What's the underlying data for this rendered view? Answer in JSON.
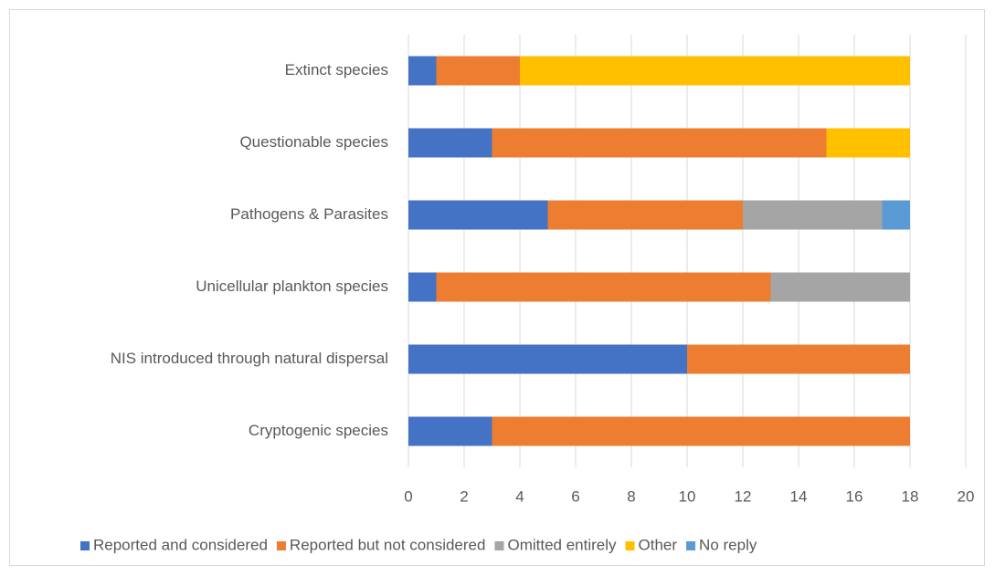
{
  "chart_data": {
    "type": "stacked-bar-horizontal",
    "categories": [
      "Extinct species",
      "Questionable species",
      "Pathogens & Parasites",
      "Unicellular plankton species",
      "NIS introduced through natural dispersal",
      "Cryptogenic species"
    ],
    "series": [
      {
        "name": "Reported and considered",
        "color": "#4472c4",
        "values": [
          1,
          3,
          5,
          1,
          10,
          3
        ]
      },
      {
        "name": "Reported but not considered",
        "color": "#ed7d31",
        "values": [
          3,
          12,
          7,
          12,
          8,
          15
        ]
      },
      {
        "name": "Omitted entirely",
        "color": "#a5a5a5",
        "values": [
          0,
          0,
          5,
          5,
          0,
          0
        ]
      },
      {
        "name": "Other",
        "color": "#ffc000",
        "values": [
          14,
          3,
          0,
          0,
          0,
          0
        ]
      },
      {
        "name": "No reply",
        "color": "#5b9bd5",
        "values": [
          0,
          0,
          1,
          0,
          0,
          0
        ]
      }
    ],
    "xlim": [
      0,
      20
    ],
    "xticks": [
      0,
      2,
      4,
      6,
      8,
      10,
      12,
      14,
      16,
      18,
      20
    ],
    "grid": true,
    "legend": "bottom"
  }
}
